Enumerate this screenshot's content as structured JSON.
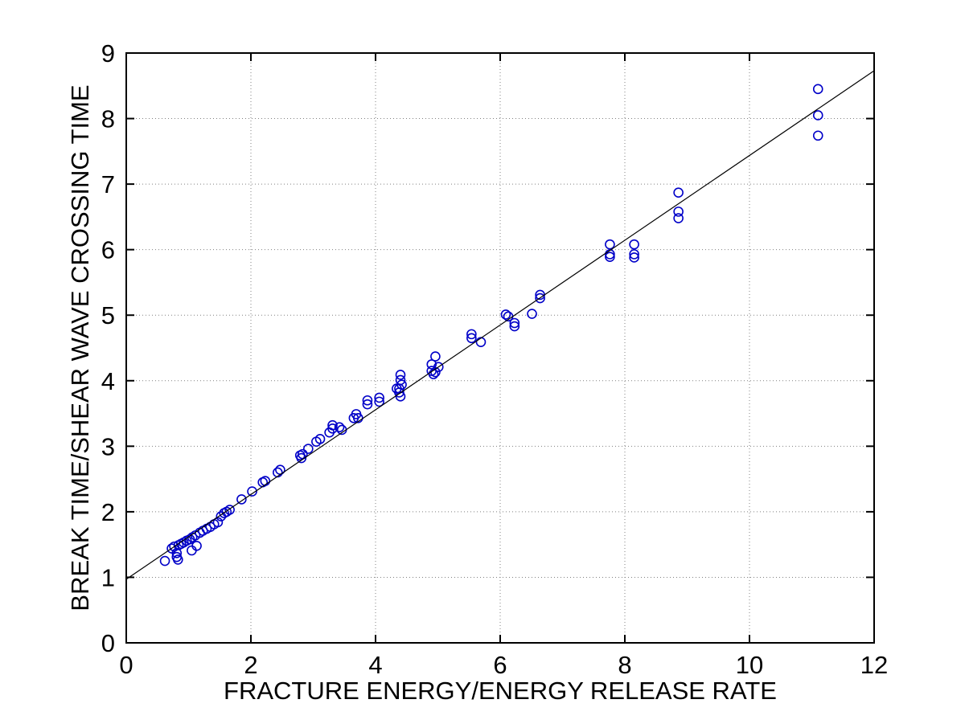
{
  "chart_data": {
    "type": "scatter",
    "title": "",
    "xlabel": "FRACTURE ENERGY/ENERGY RELEASE RATE",
    "ylabel": "BREAK TIME/SHEAR WAVE CROSSING TIME",
    "xlim": [
      0,
      12
    ],
    "ylim": [
      0,
      9
    ],
    "xticks": [
      0,
      2,
      4,
      6,
      8,
      10,
      12
    ],
    "yticks": [
      0,
      1,
      2,
      3,
      4,
      5,
      6,
      7,
      8,
      9
    ],
    "grid": true,
    "legend_position": "none",
    "marker": {
      "shape": "circle-open",
      "color": "#0000C8",
      "radius": 5.5
    },
    "axis_color": "#000000",
    "grid_color": "#808080",
    "series": [
      {
        "name": "data-points",
        "type": "scatter",
        "points": [
          [
            0.62,
            1.25
          ],
          [
            0.73,
            1.44
          ],
          [
            0.77,
            1.47
          ],
          [
            0.81,
            1.37
          ],
          [
            0.81,
            1.31
          ],
          [
            0.83,
            1.27
          ],
          [
            0.84,
            1.49
          ],
          [
            0.88,
            1.51
          ],
          [
            0.92,
            1.53
          ],
          [
            0.97,
            1.56
          ],
          [
            1.02,
            1.58
          ],
          [
            1.05,
            1.41
          ],
          [
            1.06,
            1.61
          ],
          [
            1.11,
            1.64
          ],
          [
            1.13,
            1.48
          ],
          [
            1.18,
            1.68
          ],
          [
            1.23,
            1.71
          ],
          [
            1.29,
            1.74
          ],
          [
            1.35,
            1.77
          ],
          [
            1.41,
            1.81
          ],
          [
            1.47,
            1.84
          ],
          [
            1.52,
            1.93
          ],
          [
            1.57,
            1.98
          ],
          [
            1.61,
            2.0
          ],
          [
            1.66,
            2.03
          ],
          [
            1.85,
            2.19
          ],
          [
            2.02,
            2.31
          ],
          [
            2.19,
            2.45
          ],
          [
            2.23,
            2.47
          ],
          [
            2.43,
            2.6
          ],
          [
            2.47,
            2.64
          ],
          [
            2.79,
            2.86
          ],
          [
            2.81,
            2.82
          ],
          [
            2.83,
            2.88
          ],
          [
            2.92,
            2.96
          ],
          [
            3.05,
            3.07
          ],
          [
            3.11,
            3.11
          ],
          [
            3.26,
            3.21
          ],
          [
            3.31,
            3.27
          ],
          [
            3.31,
            3.32
          ],
          [
            3.42,
            3.29
          ],
          [
            3.46,
            3.25
          ],
          [
            3.65,
            3.43
          ],
          [
            3.69,
            3.49
          ],
          [
            3.72,
            3.43
          ],
          [
            3.87,
            3.7
          ],
          [
            3.87,
            3.64
          ],
          [
            4.06,
            3.74
          ],
          [
            4.06,
            3.68
          ],
          [
            4.34,
            3.88
          ],
          [
            4.4,
            4.09
          ],
          [
            4.4,
            4.01
          ],
          [
            4.42,
            3.94
          ],
          [
            4.38,
            3.88
          ],
          [
            4.38,
            3.82
          ],
          [
            4.4,
            3.76
          ],
          [
            4.96,
            4.37
          ],
          [
            4.9,
            4.25
          ],
          [
            5.01,
            4.21
          ],
          [
            4.9,
            4.15
          ],
          [
            4.96,
            4.13
          ],
          [
            4.93,
            4.1
          ],
          [
            5.54,
            4.71
          ],
          [
            5.54,
            4.65
          ],
          [
            5.69,
            4.59
          ],
          [
            6.09,
            5.01
          ],
          [
            6.13,
            4.98
          ],
          [
            6.23,
            4.88
          ],
          [
            6.23,
            4.83
          ],
          [
            6.51,
            5.02
          ],
          [
            6.64,
            5.31
          ],
          [
            6.64,
            5.26
          ],
          [
            7.76,
            6.08
          ],
          [
            7.76,
            5.93
          ],
          [
            7.76,
            5.89
          ],
          [
            8.15,
            6.08
          ],
          [
            8.15,
            5.93
          ],
          [
            8.15,
            5.88
          ],
          [
            8.86,
            6.87
          ],
          [
            8.86,
            6.58
          ],
          [
            8.86,
            6.48
          ],
          [
            11.1,
            8.45
          ],
          [
            11.1,
            8.05
          ],
          [
            11.1,
            7.74
          ]
        ]
      },
      {
        "name": "linear-fit",
        "type": "line",
        "color": "#000000",
        "points": [
          [
            0,
            0.97
          ],
          [
            12,
            8.73
          ]
        ]
      }
    ]
  }
}
